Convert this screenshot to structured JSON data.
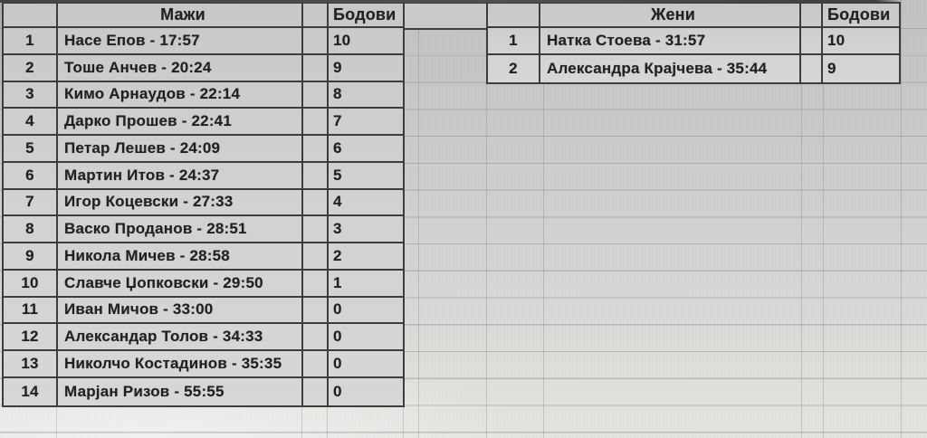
{
  "sheet": {
    "men": {
      "title": "Мажи",
      "points_header": "Бодови",
      "rows": [
        {
          "rank": "1",
          "name": "Насе Епов - 17:57",
          "points": "10"
        },
        {
          "rank": "2",
          "name": "Тоше Анчев - 20:24",
          "points": "9"
        },
        {
          "rank": "3",
          "name": "Кимо Арнаудов - 22:14",
          "points": "8"
        },
        {
          "rank": "4",
          "name": "Дарко Прошев - 22:41",
          "points": "7"
        },
        {
          "rank": "5",
          "name": "Петар Лешев - 24:09",
          "points": "6"
        },
        {
          "rank": "6",
          "name": "Мартин Итов - 24:37",
          "points": "5"
        },
        {
          "rank": "7",
          "name": "Игор Коцевски - 27:33",
          "points": "4"
        },
        {
          "rank": "8",
          "name": "Васко Проданов - 28:51",
          "points": "3"
        },
        {
          "rank": "9",
          "name": "Никола Мичев - 28:58",
          "points": "2"
        },
        {
          "rank": "10",
          "name": "Славче Џопковски - 29:50",
          "points": "1"
        },
        {
          "rank": "11",
          "name": "Иван Мичов - 33:00",
          "points": "0"
        },
        {
          "rank": "12",
          "name": "Александар Толов - 34:33",
          "points": "0"
        },
        {
          "rank": "13",
          "name": "Николчо Костадинов - 35:35",
          "points": "0"
        },
        {
          "rank": "14",
          "name": "Марјан Ризов - 55:55",
          "points": "0"
        }
      ]
    },
    "women": {
      "title": "Жени",
      "points_header": "Бодови",
      "rows": [
        {
          "rank": "1",
          "name": "Натка Стоева - 31:57",
          "points": "10"
        },
        {
          "rank": "2",
          "name": "Александра Крајчева - 35:44",
          "points": "9"
        }
      ]
    },
    "colors": {
      "cell_border": "#3d3d3b",
      "cell_fill": "#d2d1cf",
      "page_background": "#cfcecc",
      "faint_gridline": "#8a8a88",
      "text": "#202020"
    }
  }
}
